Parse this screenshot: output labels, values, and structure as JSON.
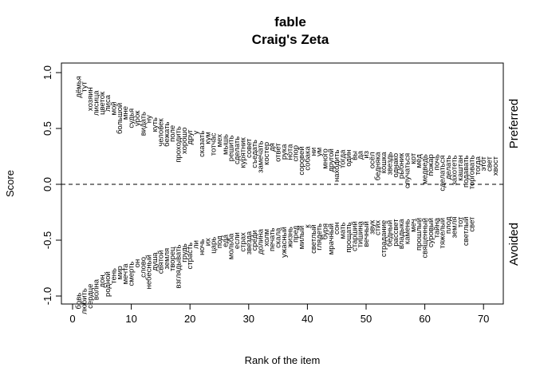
{
  "chart_data": {
    "type": "text-scatter",
    "title": "fable",
    "subtitle": "Craig's Zeta",
    "xlabel": "Rank of the item",
    "ylabel": "Score",
    "xlim": [
      0,
      72
    ],
    "ylim": [
      -1.05,
      1.05
    ],
    "xticks": [
      0,
      10,
      20,
      30,
      40,
      50,
      60,
      70
    ],
    "yticks": [
      -1.0,
      -0.5,
      0.0,
      0.5,
      1.0
    ],
    "reference_line": 0.0,
    "grid": false,
    "preferred_label": "Preferred",
    "avoided_label": "Avoided",
    "preferred": {
      "words": [
        "дёмья",
        "тут",
        "хозяин",
        "лисица",
        "цветок",
        "лиса",
        "мой",
        "большой",
        "мне",
        "судья",
        "урок",
        "видать",
        "ну",
        "куть",
        "человек",
        "бежать",
        "поле",
        "проходить",
        "хорошо",
        "друг",
        "у",
        "сказать",
        "кум",
        "тотчас",
        "мех",
        "мышь",
        "решить",
        "сделать",
        "курятник",
        "совет",
        "съедать",
        "замечать",
        "костер",
        "дя",
        "ответ",
        "рука",
        "нота",
        "спор",
        "соровей",
        "собака",
        "ни",
        "ум",
        "много",
        "другой",
        "находить",
        "тогда",
        "один",
        "вы",
        "да",
        "из",
        "осёл",
        "беднякa",
        "кошка",
        "звездь",
        "однако",
        "рыбник",
        "случаться",
        "кот",
        "мёд",
        "медведь",
        "пожар",
        "почь",
        "сделаться",
        "делать",
        "захотеть",
        "каштан",
        "подавать",
        "торговать",
        "тогда",
        "этот",
        "свет",
        "хвост"
      ],
      "scores": [
        0.97,
        0.92,
        0.87,
        0.84,
        0.83,
        0.8,
        0.74,
        0.73,
        0.7,
        0.68,
        0.66,
        0.65,
        0.62,
        0.6,
        0.59,
        0.56,
        0.53,
        0.52,
        0.51,
        0.49,
        0.48,
        0.48,
        0.47,
        0.46,
        0.45,
        0.45,
        0.44,
        0.43,
        0.42,
        0.41,
        0.4,
        0.39,
        0.38,
        0.37,
        0.37,
        0.36,
        0.36,
        0.35,
        0.34,
        0.34,
        0.33,
        0.33,
        0.32,
        0.32,
        0.31,
        0.31,
        0.31,
        0.3,
        0.3,
        0.3,
        0.29,
        0.29,
        0.29,
        0.29,
        0.28,
        0.28,
        0.28,
        0.28,
        0.27,
        0.27,
        0.27,
        0.27,
        0.26,
        0.26,
        0.26,
        0.26,
        0.26,
        0.26,
        0.25,
        0.25,
        0.25,
        0.25
      ]
    },
    "avoided": {
      "words": [
        "бовь",
        "любить",
        "сердце",
        "волна",
        "дон",
        "родной",
        "тень",
        "мир",
        "мечта",
        "смерть",
        "он",
        "слово",
        "небесный",
        "душа",
        "святой",
        "земля",
        "творец",
        "взглядывать",
        "грудь",
        "страсть",
        "ли",
        "ночь",
        "их",
        "царь",
        "под",
        "еда",
        "мольба",
        "если",
        "страх",
        "звезда",
        "среди",
        "долина",
        "холм",
        "печать",
        "скала",
        "ужасный",
        "жизнь",
        "пред",
        "милый",
        "к",
        "светлый",
        "глядеть",
        "буря",
        "мрачный",
        "сон",
        "мать",
        "прощать",
        "старший",
        "тишина",
        "вечный",
        "звук",
        "стих",
        "страдание",
        "бедный",
        "рассвет",
        "владыка",
        "камень",
        "меч",
        "прошлый",
        "священный",
        "суровый",
        "тайна",
        "тяжелый",
        "плод",
        "земля",
        "тот",
        "светлый",
        "свет"
      ],
      "scores": [
        -0.97,
        -0.93,
        -0.89,
        -0.85,
        -0.81,
        -0.78,
        -0.75,
        -0.73,
        -0.71,
        -0.69,
        -0.67,
        -0.65,
        -0.63,
        -0.61,
        -0.59,
        -0.57,
        -0.56,
        -0.54,
        -0.53,
        -0.52,
        -0.5,
        -0.49,
        -0.48,
        -0.47,
        -0.46,
        -0.45,
        -0.44,
        -0.43,
        -0.43,
        -0.42,
        -0.41,
        -0.4,
        -0.4,
        -0.39,
        -0.39,
        -0.38,
        -0.38,
        -0.37,
        -0.37,
        -0.36,
        -0.36,
        -0.35,
        -0.35,
        -0.35,
        -0.34,
        -0.34,
        -0.34,
        -0.33,
        -0.33,
        -0.33,
        -0.32,
        -0.32,
        -0.32,
        -0.32,
        -0.31,
        -0.31,
        -0.31,
        -0.31,
        -0.3,
        -0.3,
        -0.3,
        -0.3,
        -0.3,
        -0.29,
        -0.29,
        -0.29,
        -0.29,
        -0.29
      ]
    }
  }
}
